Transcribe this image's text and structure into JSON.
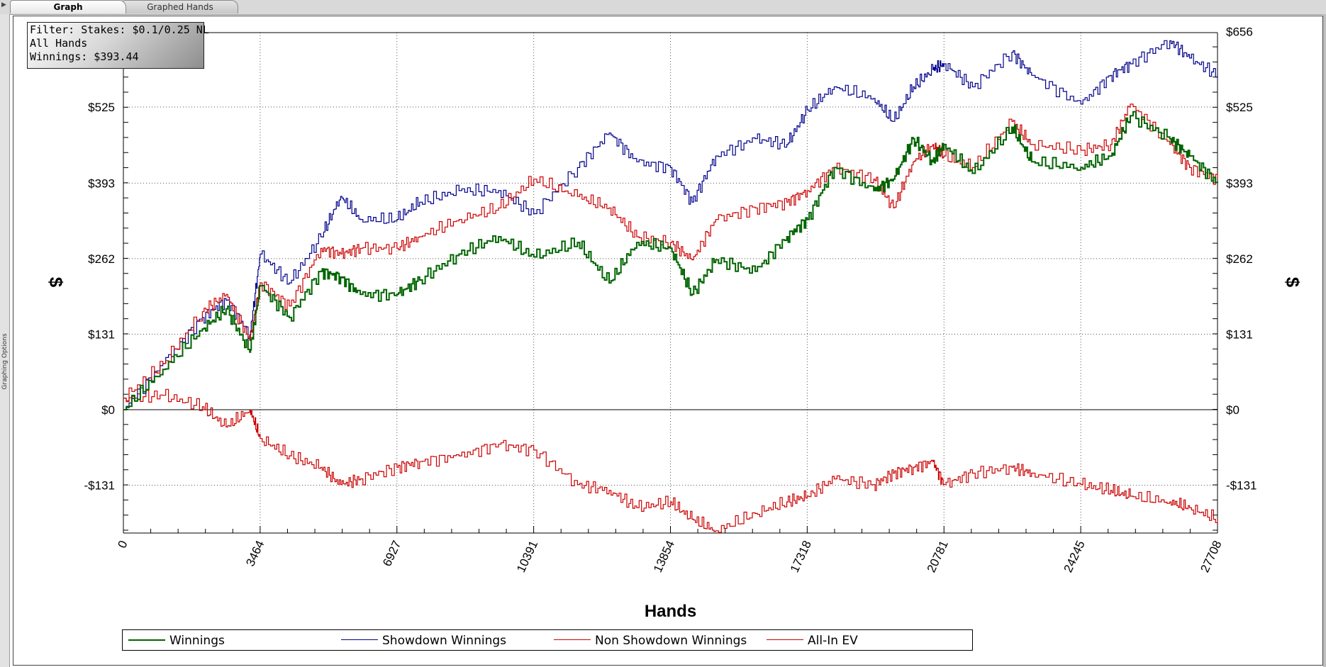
{
  "tabs": [
    {
      "label": "Graph",
      "active": true
    },
    {
      "label": "Graphed Hands",
      "active": false
    }
  ],
  "side_panel": {
    "label": "Graphing Options"
  },
  "filter_box": {
    "line1": "Filter: Stakes: $0.1/0.25 NL",
    "line2": "All Hands",
    "line3": "Winnings: $393.44"
  },
  "chart_data": {
    "type": "line",
    "xlabel": "Hands",
    "ylabel": "$",
    "xlim": [
      0,
      27708
    ],
    "ylim": [
      -210,
      656
    ],
    "x_ticks": [
      0,
      3464,
      6927,
      10391,
      13854,
      17318,
      20781,
      24245,
      27708
    ],
    "y_ticks": [
      -131,
      0,
      131,
      262,
      393,
      525,
      656
    ],
    "y_tick_labels": [
      "-$131",
      "$0",
      "$131",
      "$262",
      "$393",
      "$525",
      "$656"
    ],
    "grid": true,
    "legend_position": "bottom",
    "x": [
      0,
      1000,
      2000,
      2600,
      3200,
      3464,
      4200,
      5000,
      5500,
      6000,
      6927,
      7500,
      8500,
      9500,
      10391,
      11500,
      12300,
      13000,
      13854,
      14400,
      15000,
      16000,
      16800,
      17318,
      18000,
      19000,
      19500,
      20000,
      20500,
      20781,
      21500,
      22500,
      23000,
      24245,
      25000,
      25500,
      26500,
      27000,
      27708
    ],
    "series": [
      {
        "name": "Winnings",
        "color": "#006400",
        "values": [
          0,
          70,
          140,
          175,
          100,
          215,
          160,
          240,
          230,
          200,
          200,
          225,
          270,
          300,
          265,
          290,
          220,
          290,
          280,
          200,
          260,
          240,
          300,
          330,
          420,
          380,
          400,
          470,
          430,
          460,
          410,
          490,
          430,
          420,
          440,
          510,
          470,
          440,
          393
        ]
      },
      {
        "name": "Showdown Winnings",
        "color": "#00008B",
        "values": [
          0,
          80,
          160,
          190,
          130,
          270,
          220,
          300,
          370,
          330,
          330,
          360,
          380,
          380,
          340,
          420,
          480,
          430,
          420,
          360,
          440,
          470,
          460,
          520,
          560,
          540,
          500,
          560,
          590,
          600,
          560,
          620,
          580,
          530,
          580,
          600,
          640,
          610,
          580
        ]
      },
      {
        "name": "Non Showdown Winnings",
        "color": "#CC0000",
        "values": [
          20,
          25,
          5,
          -30,
          0,
          -50,
          -80,
          -100,
          -130,
          -120,
          -100,
          -90,
          -80,
          -60,
          -70,
          -130,
          -140,
          -170,
          -160,
          -190,
          -210,
          -180,
          -160,
          -150,
          -120,
          -130,
          -110,
          -100,
          -90,
          -130,
          -110,
          -100,
          -110,
          -130,
          -140,
          -150,
          -160,
          -170,
          -190
        ]
      },
      {
        "name": "All-In EV",
        "color": "#CC0000",
        "values": [
          20,
          80,
          170,
          200,
          120,
          220,
          180,
          280,
          270,
          280,
          280,
          300,
          330,
          350,
          400,
          370,
          350,
          300,
          290,
          260,
          330,
          350,
          360,
          380,
          420,
          400,
          350,
          430,
          460,
          440,
          420,
          500,
          460,
          450,
          460,
          530,
          460,
          420,
          400
        ]
      }
    ]
  }
}
